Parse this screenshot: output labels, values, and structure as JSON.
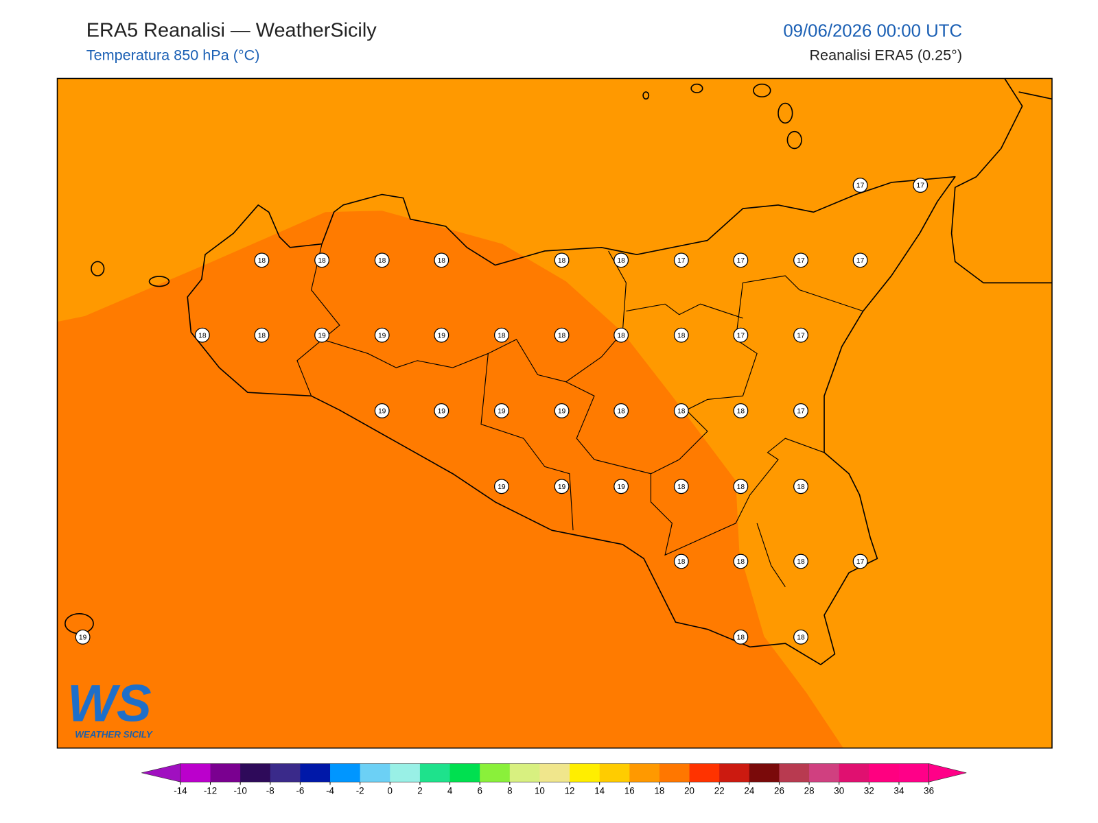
{
  "header": {
    "title": "ERA5 Reanalisi — WeatherSicily",
    "subtitle": "Temperatura 850 hPa (°C)",
    "datetime": "09/06/2026 00:00 UTC",
    "source": "Reanalisi ERA5 (0.25°)"
  },
  "map": {
    "shading": [
      "#ff9900",
      "#ff7b00"
    ],
    "points": [
      17,
      17,
      18,
      18,
      18,
      18,
      18,
      18,
      17,
      17,
      17,
      17,
      18,
      18,
      19,
      19,
      19,
      18,
      18,
      18,
      18,
      17,
      17,
      19,
      19,
      19,
      19,
      18,
      18,
      18,
      17,
      19,
      19,
      19,
      18,
      18,
      18,
      18,
      18,
      18,
      17,
      19,
      18,
      18
    ]
  },
  "logo": {
    "mark": "WS",
    "text": "WEATHER SICILY"
  },
  "colorbar": {
    "ticks": [
      -14,
      -12,
      -10,
      -8,
      -6,
      -4,
      -2,
      0,
      2,
      4,
      6,
      8,
      10,
      12,
      14,
      16,
      18,
      20,
      22,
      24,
      26,
      28,
      30,
      32,
      34,
      36
    ],
    "colors": [
      "#a010c0",
      "#bb00cc",
      "#7a0090",
      "#2e0a5a",
      "#3a2a8a",
      "#0018a8",
      "#0096ff",
      "#6cd0f5",
      "#99f0e6",
      "#1ee28c",
      "#00e050",
      "#8af03a",
      "#d8f080",
      "#f0e68c",
      "#ffee00",
      "#ffcc00",
      "#ff9900",
      "#ff7700",
      "#ff3300",
      "#cc1a10",
      "#7a0a0a",
      "#b83a50",
      "#d04080",
      "#e01070",
      "#ff0080",
      "#ff0088"
    ]
  }
}
